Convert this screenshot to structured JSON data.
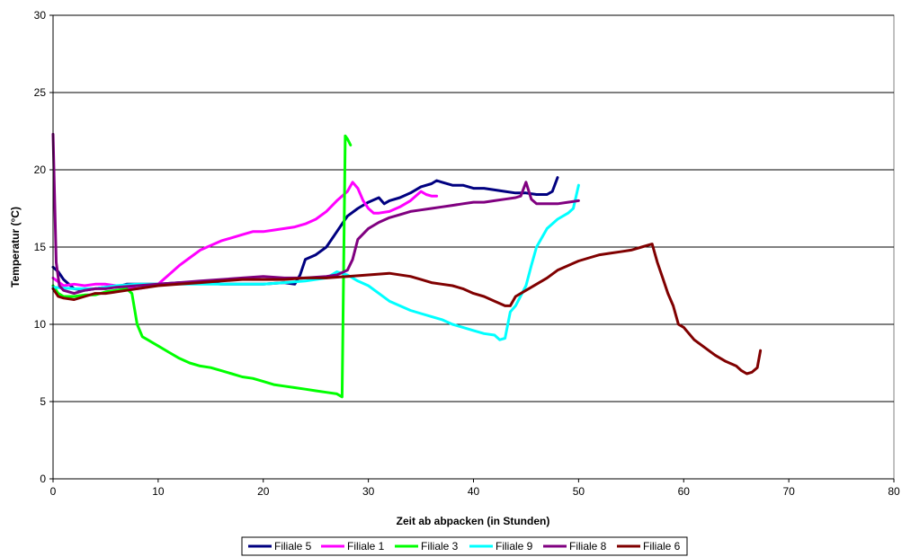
{
  "chart_data": {
    "type": "line",
    "title": "",
    "xlabel": "Zeit ab abpacken (in Stunden)",
    "ylabel": "Temperatur (°C)",
    "xlim": [
      0,
      80
    ],
    "ylim": [
      0,
      30
    ],
    "xticks": [
      0,
      10,
      20,
      30,
      40,
      50,
      60,
      70,
      80
    ],
    "yticks": [
      0,
      5,
      10,
      15,
      20,
      25,
      30
    ],
    "grid": "horizontal",
    "legend": "bottom",
    "series": [
      {
        "name": "Filiale 5",
        "color": "#000080",
        "x": [
          0,
          0.5,
          1,
          1.5,
          2,
          3,
          4,
          5,
          6,
          7,
          8,
          10,
          12,
          14,
          16,
          18,
          20,
          22,
          23,
          23.5,
          24,
          25,
          26,
          27,
          28,
          29,
          30,
          31,
          31.5,
          32,
          33,
          34,
          35,
          36,
          36.5,
          37,
          38,
          39,
          40,
          41,
          42,
          43,
          44,
          45,
          46,
          47,
          47.5,
          48
        ],
        "y": [
          13.7,
          13.4,
          12.9,
          12.6,
          12.3,
          12.2,
          12.3,
          12.4,
          12.4,
          12.6,
          12.6,
          12.6,
          12.7,
          12.7,
          12.6,
          12.6,
          12.6,
          12.7,
          12.6,
          13.2,
          14.2,
          14.5,
          15.0,
          16.0,
          17.0,
          17.5,
          17.9,
          18.2,
          17.8,
          18.0,
          18.2,
          18.5,
          18.9,
          19.1,
          19.3,
          19.2,
          19.0,
          19.0,
          18.8,
          18.8,
          18.7,
          18.6,
          18.5,
          18.5,
          18.4,
          18.4,
          18.6,
          19.5
        ]
      },
      {
        "name": "Filiale 1",
        "color": "#FF00FF",
        "x": [
          0,
          1,
          2,
          3,
          4,
          5,
          6,
          7,
          8,
          9,
          10,
          11,
          12,
          13,
          14,
          15,
          16,
          17,
          18,
          19,
          20,
          21,
          22,
          23,
          24,
          25,
          26,
          27,
          28,
          28.5,
          29,
          29.5,
          30,
          30.5,
          31,
          32,
          33,
          34,
          35,
          35.5,
          36,
          36.5
        ],
        "y": [
          13.0,
          12.5,
          12.6,
          12.5,
          12.6,
          12.6,
          12.5,
          12.4,
          12.3,
          12.4,
          12.6,
          13.2,
          13.8,
          14.3,
          14.8,
          15.1,
          15.4,
          15.6,
          15.8,
          16.0,
          16.0,
          16.1,
          16.2,
          16.3,
          16.5,
          16.8,
          17.3,
          18.0,
          18.6,
          19.2,
          18.8,
          18.0,
          17.5,
          17.2,
          17.2,
          17.3,
          17.6,
          18.0,
          18.6,
          18.4,
          18.3,
          18.3
        ]
      },
      {
        "name": "Filiale 3",
        "color": "#00FF00",
        "x": [
          0,
          0.5,
          1,
          2,
          3,
          4,
          5,
          6,
          7,
          7.5,
          8,
          8.5,
          9,
          10,
          11,
          12,
          13,
          14,
          15,
          16,
          17,
          18,
          19,
          20,
          21,
          22,
          23,
          24,
          25,
          26,
          27,
          27.5,
          27.8,
          28,
          28.3
        ],
        "y": [
          12.5,
          12.0,
          11.8,
          11.8,
          11.9,
          11.9,
          12.1,
          12.2,
          12.3,
          12.0,
          10.0,
          9.2,
          9.0,
          8.6,
          8.2,
          7.8,
          7.5,
          7.3,
          7.2,
          7.0,
          6.8,
          6.6,
          6.5,
          6.3,
          6.1,
          6.0,
          5.9,
          5.8,
          5.7,
          5.6,
          5.5,
          5.3,
          22.2,
          22.0,
          21.6
        ]
      },
      {
        "name": "Filiale 9",
        "color": "#00FFFF",
        "x": [
          0,
          2,
          4,
          6,
          8,
          10,
          12,
          14,
          16,
          18,
          20,
          22,
          24,
          26,
          27,
          28,
          29,
          30,
          31,
          32,
          33,
          34,
          35,
          36,
          37,
          38,
          39,
          40,
          41,
          42,
          42.5,
          43,
          43.5,
          44,
          45,
          45.5,
          46,
          47,
          48,
          49,
          49.5,
          50
        ],
        "y": [
          12.4,
          12.3,
          12.3,
          12.5,
          12.6,
          12.6,
          12.6,
          12.6,
          12.6,
          12.6,
          12.6,
          12.7,
          12.8,
          13.0,
          13.4,
          13.2,
          12.8,
          12.5,
          12.0,
          11.5,
          11.2,
          10.9,
          10.7,
          10.5,
          10.3,
          10.0,
          9.8,
          9.6,
          9.4,
          9.3,
          9.0,
          9.1,
          10.8,
          11.2,
          12.5,
          13.8,
          15.0,
          16.2,
          16.8,
          17.2,
          17.5,
          19.0
        ]
      },
      {
        "name": "Filiale 8",
        "color": "#800080",
        "x": [
          0,
          0.3,
          0.6,
          1,
          2,
          3,
          4,
          5,
          6,
          8,
          10,
          12,
          14,
          16,
          18,
          20,
          22,
          24,
          26,
          27,
          28,
          28.5,
          29,
          30,
          31,
          32,
          33,
          34,
          35,
          36,
          37,
          38,
          39,
          40,
          41,
          42,
          43,
          44,
          44.5,
          45,
          45.5,
          46,
          47,
          48,
          49,
          50
        ],
        "y": [
          22.3,
          14.0,
          12.5,
          12.2,
          12.0,
          12.2,
          12.3,
          12.3,
          12.4,
          12.5,
          12.6,
          12.7,
          12.8,
          12.9,
          13.0,
          13.1,
          13.0,
          13.0,
          13.1,
          13.2,
          13.5,
          14.2,
          15.5,
          16.2,
          16.6,
          16.9,
          17.1,
          17.3,
          17.4,
          17.5,
          17.6,
          17.7,
          17.8,
          17.9,
          17.9,
          18.0,
          18.1,
          18.2,
          18.3,
          19.2,
          18.1,
          17.8,
          17.8,
          17.8,
          17.9,
          18.0
        ]
      },
      {
        "name": "Filiale 6",
        "color": "#800000",
        "x": [
          0,
          0.5,
          1,
          2,
          3,
          4,
          5,
          6,
          7,
          8,
          10,
          12,
          14,
          16,
          18,
          20,
          22,
          24,
          26,
          28,
          30,
          32,
          34,
          35,
          36,
          37,
          38,
          39,
          40,
          41,
          42,
          43,
          43.5,
          44,
          45,
          46,
          47,
          48,
          49,
          50,
          51,
          52,
          53,
          54,
          55,
          56,
          57,
          57.5,
          58,
          58.5,
          59,
          59.5,
          60,
          61,
          62,
          63,
          64,
          65,
          65.5,
          66,
          66.5,
          67,
          67.3
        ],
        "y": [
          12.3,
          11.8,
          11.7,
          11.6,
          11.8,
          12.0,
          12.0,
          12.1,
          12.2,
          12.3,
          12.5,
          12.6,
          12.7,
          12.8,
          12.9,
          12.9,
          12.9,
          13.0,
          13.0,
          13.1,
          13.2,
          13.3,
          13.1,
          12.9,
          12.7,
          12.6,
          12.5,
          12.3,
          12.0,
          11.8,
          11.5,
          11.2,
          11.2,
          11.8,
          12.2,
          12.6,
          13.0,
          13.5,
          13.8,
          14.1,
          14.3,
          14.5,
          14.6,
          14.7,
          14.8,
          15.0,
          15.2,
          14.0,
          13.0,
          12.0,
          11.2,
          10.0,
          9.8,
          9.0,
          8.5,
          8.0,
          7.6,
          7.3,
          7.0,
          6.8,
          6.9,
          7.2,
          8.3
        ]
      }
    ]
  }
}
